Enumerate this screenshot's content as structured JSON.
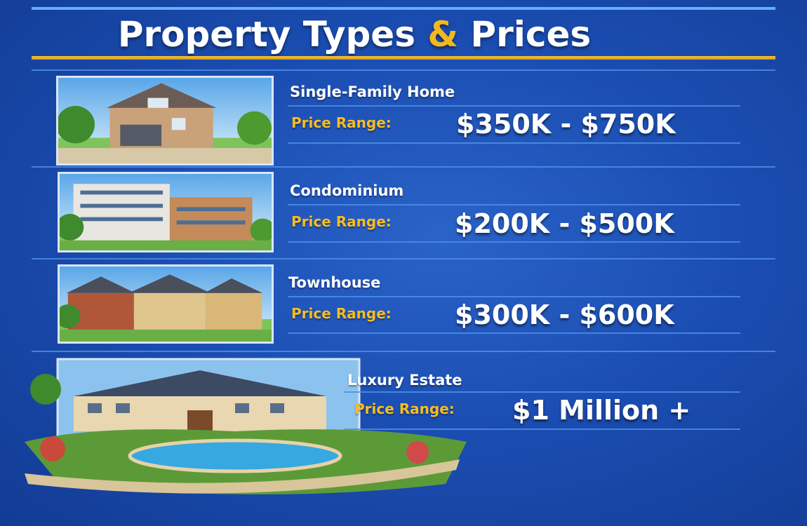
{
  "title": {
    "part1": "Property Types",
    "amp": "&",
    "part2": "Prices"
  },
  "colors": {
    "background": "#1a4cb0",
    "accent_gold": "#f6bd22",
    "text": "#ffffff"
  },
  "properties": [
    {
      "name": "Single-Family Home",
      "price_label": "Price Range:",
      "price": "$350K - $750K",
      "image": "single-family-house"
    },
    {
      "name": "Condominium",
      "price_label": "Price Range:",
      "price": "$200K - $500K",
      "image": "condominium-building"
    },
    {
      "name": "Townhouse",
      "price_label": "Price Range:",
      "price": "$300K - $600K",
      "image": "townhouse-row"
    },
    {
      "name": "Luxury Estate",
      "price_label": "Price Range:",
      "price": "$1 Million +",
      "image": "luxury-estate-with-pool"
    }
  ]
}
